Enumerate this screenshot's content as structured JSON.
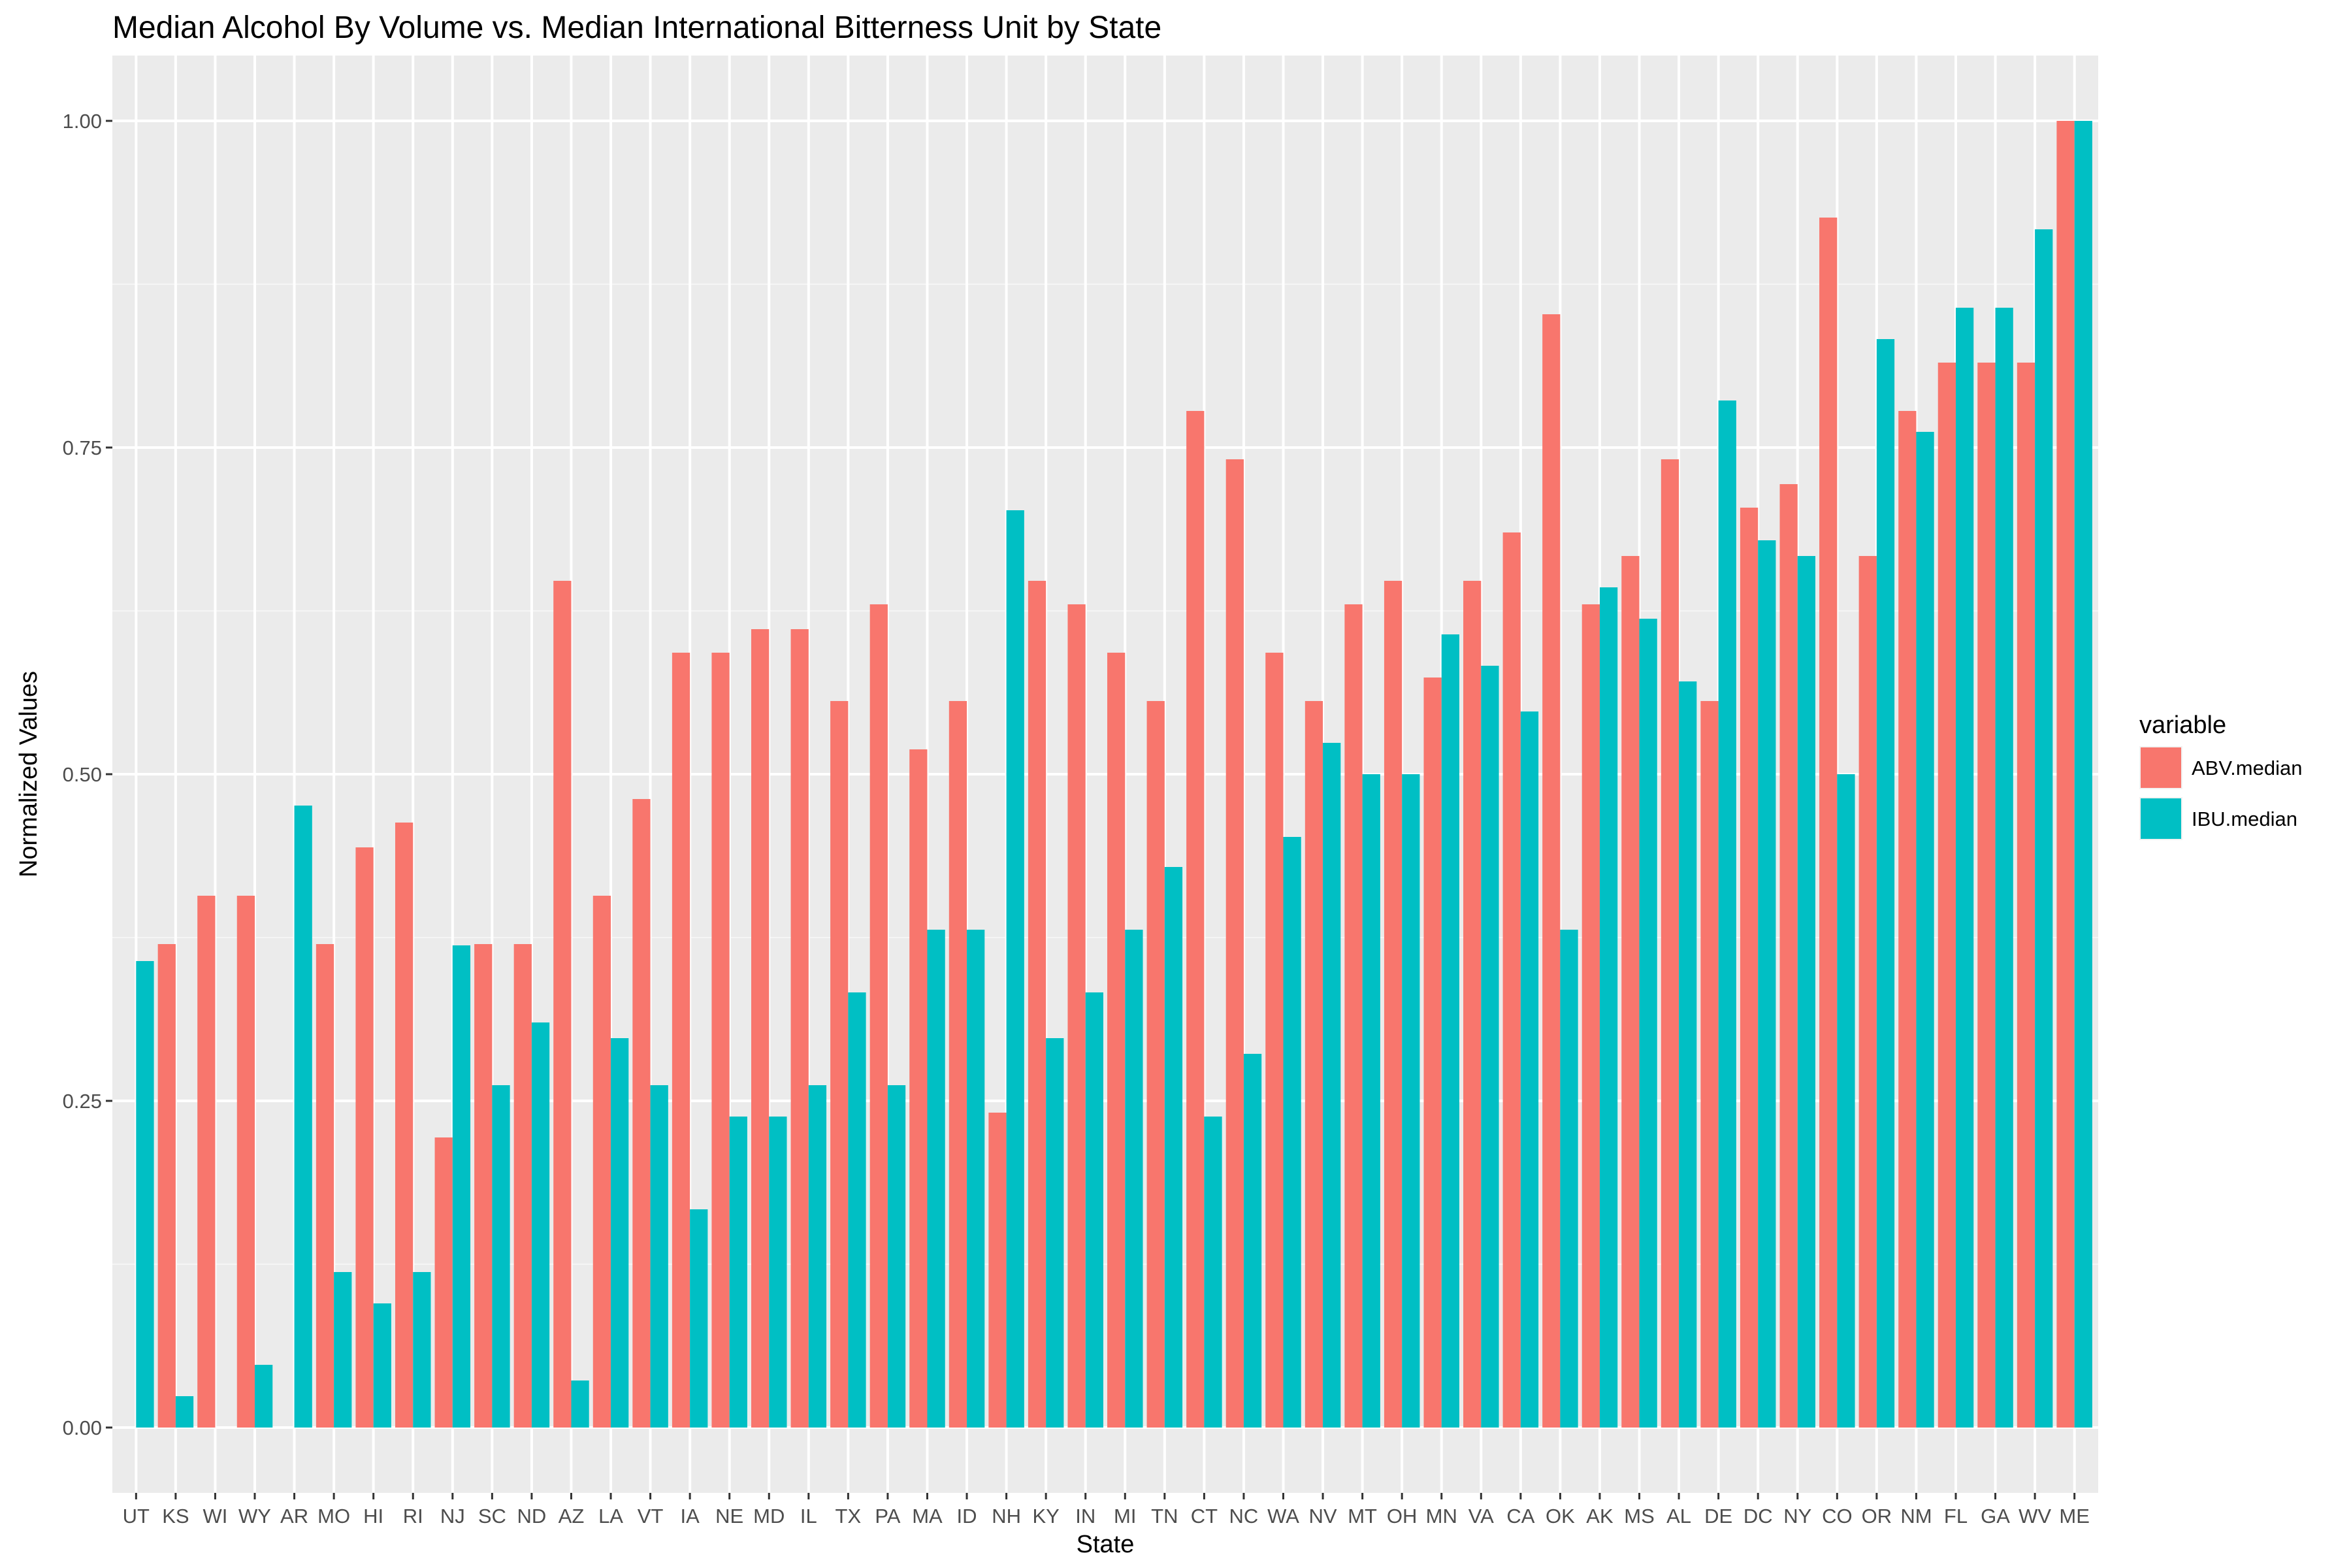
{
  "chart_data": {
    "type": "bar",
    "title": "Median Alcohol By Volume vs. Median International Bitterness Unit by State",
    "xlabel": "State",
    "ylabel": "Normalized Values",
    "ylim": [
      -0.05,
      1.05
    ],
    "yticks": [
      0.0,
      0.25,
      0.5,
      0.75,
      1.0
    ],
    "ytick_labels": [
      "0.00",
      "0.25",
      "0.50",
      "0.75",
      "1.00"
    ],
    "grid": true,
    "legend_title": "variable",
    "legend_position": "right",
    "categories": [
      "UT",
      "KS",
      "WI",
      "WY",
      "AR",
      "MO",
      "HI",
      "RI",
      "NJ",
      "SC",
      "ND",
      "AZ",
      "LA",
      "VT",
      "IA",
      "NE",
      "MD",
      "IL",
      "TX",
      "PA",
      "MA",
      "ID",
      "NH",
      "KY",
      "IN",
      "MI",
      "TN",
      "CT",
      "NC",
      "WA",
      "NV",
      "MT",
      "OH",
      "MN",
      "VA",
      "CA",
      "OK",
      "AK",
      "MS",
      "AL",
      "DE",
      "DC",
      "NY",
      "CO",
      "OR",
      "NM",
      "FL",
      "GA",
      "WV",
      "ME"
    ],
    "series": [
      {
        "name": "ABV.median",
        "color": "#F8766D",
        "values": [
          0.0,
          0.37,
          0.407,
          0.407,
          0.0,
          0.37,
          0.444,
          0.463,
          0.222,
          0.37,
          0.37,
          0.648,
          0.407,
          0.481,
          0.593,
          0.593,
          0.611,
          0.611,
          0.556,
          0.63,
          0.519,
          0.556,
          0.241,
          0.648,
          0.63,
          0.593,
          0.556,
          0.778,
          0.741,
          0.593,
          0.556,
          0.63,
          0.648,
          0.574,
          0.648,
          0.685,
          0.852,
          0.63,
          0.667,
          0.741,
          0.556,
          0.704,
          0.722,
          0.926,
          0.667,
          0.778,
          0.815,
          0.815,
          0.815,
          1.0
        ]
      },
      {
        "name": "IBU.median",
        "color": "#00BFC4",
        "values": [
          0.357,
          0.024,
          0.0,
          0.048,
          0.476,
          0.119,
          0.095,
          0.119,
          0.369,
          0.262,
          0.31,
          0.036,
          0.298,
          0.262,
          0.167,
          0.238,
          0.238,
          0.262,
          0.333,
          0.262,
          0.381,
          0.381,
          0.702,
          0.298,
          0.333,
          0.381,
          0.429,
          0.238,
          0.286,
          0.452,
          0.524,
          0.5,
          0.5,
          0.607,
          0.583,
          0.548,
          0.381,
          0.643,
          0.619,
          0.571,
          0.786,
          0.679,
          0.667,
          0.5,
          0.833,
          0.762,
          0.857,
          0.857,
          0.917,
          1.0
        ]
      }
    ]
  }
}
